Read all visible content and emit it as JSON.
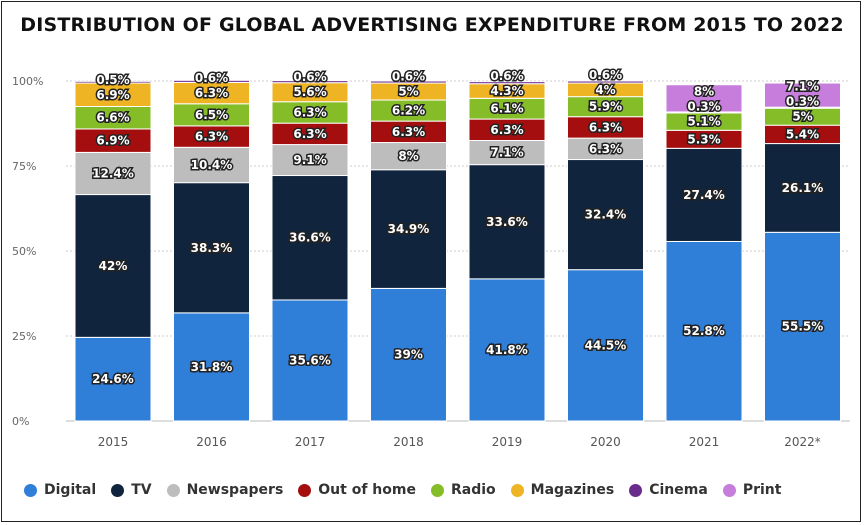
{
  "chart_data": {
    "type": "bar",
    "stacked": true,
    "title": "DISTRIBUTION OF GLOBAL ADVERTISING EXPENDITURE FROM 2015 TO 2022",
    "xlabel": "",
    "ylabel": "",
    "ylim": [
      0,
      100
    ],
    "yticks": [
      "0%",
      "25%",
      "50%",
      "75%",
      "100%"
    ],
    "categories": [
      "2015",
      "2016",
      "2017",
      "2018",
      "2019",
      "2020",
      "2021",
      "2022*"
    ],
    "series": [
      {
        "name": "Digital",
        "color": "#2f7ed8",
        "values": [
          24.6,
          31.8,
          35.6,
          39,
          41.8,
          44.5,
          52.8,
          55.5
        ]
      },
      {
        "name": "TV",
        "color": "#11243d",
        "values": [
          42,
          38.3,
          36.6,
          34.9,
          33.6,
          32.4,
          27.4,
          26.1
        ]
      },
      {
        "name": "Newspapers",
        "color": "#bdbdbd",
        "values": [
          12.4,
          10.4,
          9.1,
          8,
          7.1,
          6.3,
          0,
          0
        ]
      },
      {
        "name": "Out of home",
        "color": "#a50e0e",
        "values": [
          6.9,
          6.3,
          6.3,
          6.3,
          6.3,
          6.3,
          5.3,
          5.4
        ]
      },
      {
        "name": "Radio",
        "color": "#84bd27",
        "values": [
          6.6,
          6.5,
          6.3,
          6.2,
          6.1,
          5.9,
          5.1,
          5
        ]
      },
      {
        "name": "Magazines",
        "color": "#efb423",
        "values": [
          6.9,
          6.3,
          5.6,
          5,
          4.3,
          4,
          0,
          0
        ]
      },
      {
        "name": "Cinema",
        "color": "#6a2c8c",
        "values": [
          0.5,
          0.6,
          0.6,
          0.6,
          0.6,
          0.6,
          0.3,
          0.3
        ]
      },
      {
        "name": "Print",
        "color": "#c77ddb",
        "values": [
          0,
          0,
          0,
          0,
          0,
          0,
          8,
          7.1
        ]
      }
    ],
    "grid": true,
    "legend": "bottom"
  }
}
